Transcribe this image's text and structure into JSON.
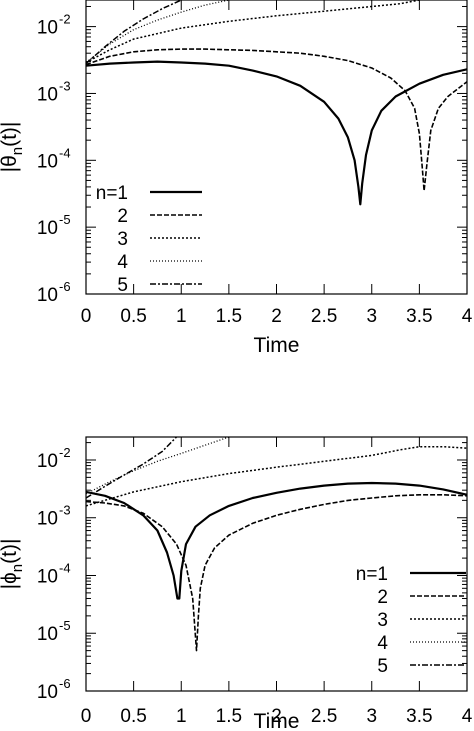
{
  "chart_data": [
    {
      "type": "line",
      "title": "",
      "xlabel": "Time",
      "ylabel": "|θn(t)|",
      "ylabel_parts": {
        "pre": "|θ",
        "sub": "n",
        "post": "(t)|"
      },
      "xlim": [
        0,
        4
      ],
      "ylim": [
        1e-06,
        0.025
      ],
      "yscale": "log",
      "grid": false,
      "legend_position": "lower-left",
      "x_ticks": [
        {
          "value": 0,
          "label": "0"
        },
        {
          "value": 0.5,
          "label": "0.5"
        },
        {
          "value": 1,
          "label": "1"
        },
        {
          "value": 1.5,
          "label": "1.5"
        },
        {
          "value": 2,
          "label": "2"
        },
        {
          "value": 2.5,
          "label": "2.5"
        },
        {
          "value": 3,
          "label": "3"
        },
        {
          "value": 3.5,
          "label": "3.5"
        },
        {
          "value": 4,
          "label": "4"
        }
      ],
      "y_ticks": [
        {
          "value": 1e-06,
          "label": "10",
          "exp": "-6"
        },
        {
          "value": 1e-05,
          "label": "10",
          "exp": "-5"
        },
        {
          "value": 0.0001,
          "label": "10",
          "exp": "-4"
        },
        {
          "value": 0.001,
          "label": "10",
          "exp": "-3"
        },
        {
          "value": 0.01,
          "label": "10",
          "exp": "-2"
        }
      ],
      "series": [
        {
          "name": "n=1",
          "style": "solid",
          "x": [
            0,
            0.25,
            0.5,
            0.75,
            1.0,
            1.25,
            1.5,
            1.75,
            2.0,
            2.25,
            2.5,
            2.65,
            2.75,
            2.82,
            2.86,
            2.88,
            2.9,
            2.94,
            3.0,
            3.1,
            3.25,
            3.5,
            3.75,
            4.0
          ],
          "y": [
            0.0026,
            0.0028,
            0.0029,
            0.003,
            0.0029,
            0.0028,
            0.0026,
            0.0022,
            0.0018,
            0.0013,
            0.00075,
            0.00042,
            0.00022,
            0.0001,
            4e-05,
            2.2e-05,
            4.5e-05,
            0.00012,
            0.00028,
            0.00055,
            0.0009,
            0.0014,
            0.0019,
            0.0023
          ]
        },
        {
          "name": "2",
          "style": "dashed",
          "x": [
            0,
            0.25,
            0.5,
            0.75,
            1.0,
            1.25,
            1.5,
            1.75,
            2.0,
            2.25,
            2.5,
            2.75,
            3.0,
            3.2,
            3.35,
            3.45,
            3.5,
            3.53,
            3.55,
            3.58,
            3.62,
            3.7,
            3.8,
            4.0
          ],
          "y": [
            0.0027,
            0.0036,
            0.0042,
            0.0045,
            0.0046,
            0.0046,
            0.0045,
            0.0044,
            0.0042,
            0.004,
            0.0036,
            0.0031,
            0.0024,
            0.0017,
            0.0011,
            0.0006,
            0.00025,
            8e-05,
            3.5e-05,
            9e-05,
            0.00028,
            0.0006,
            0.0009,
            0.0015
          ]
        },
        {
          "name": "3",
          "style": "dotted",
          "x": [
            0,
            0.25,
            0.5,
            1.0,
            1.5,
            2.0,
            2.5,
            3.0,
            3.3,
            3.5
          ],
          "y": [
            0.0029,
            0.0045,
            0.0065,
            0.0095,
            0.012,
            0.0145,
            0.017,
            0.02,
            0.022,
            0.025
          ]
        },
        {
          "name": "4",
          "style": "fine-dotted",
          "x": [
            0,
            0.25,
            0.5,
            0.75,
            1.0,
            1.25,
            1.5
          ],
          "y": [
            0.0029,
            0.0055,
            0.009,
            0.0125,
            0.0165,
            0.021,
            0.025
          ]
        },
        {
          "name": "5",
          "style": "dash-dot",
          "x": [
            0,
            0.2,
            0.4,
            0.6,
            0.8,
            1.0
          ],
          "y": [
            0.0028,
            0.005,
            0.0085,
            0.013,
            0.0185,
            0.025
          ]
        }
      ]
    },
    {
      "type": "line",
      "title": "",
      "xlabel": "Time",
      "ylabel": "|ϕn(t)|",
      "ylabel_parts": {
        "pre": "|ϕ",
        "sub": "n",
        "post": "(t)|"
      },
      "xlim": [
        0,
        4
      ],
      "ylim": [
        1e-06,
        0.025
      ],
      "yscale": "log",
      "grid": false,
      "legend_position": "lower-right",
      "x_ticks": [
        {
          "value": 0,
          "label": "0"
        },
        {
          "value": 0.5,
          "label": "0.5"
        },
        {
          "value": 1,
          "label": "1"
        },
        {
          "value": 1.5,
          "label": "1.5"
        },
        {
          "value": 2,
          "label": "2"
        },
        {
          "value": 2.5,
          "label": "2.5"
        },
        {
          "value": 3,
          "label": "3"
        },
        {
          "value": 3.5,
          "label": "3.5"
        },
        {
          "value": 4,
          "label": "4"
        }
      ],
      "y_ticks": [
        {
          "value": 1e-06,
          "label": "10",
          "exp": "-6"
        },
        {
          "value": 1e-05,
          "label": "10",
          "exp": "-5"
        },
        {
          "value": 0.0001,
          "label": "10",
          "exp": "-4"
        },
        {
          "value": 0.001,
          "label": "10",
          "exp": "-3"
        },
        {
          "value": 0.01,
          "label": "10",
          "exp": "-2"
        }
      ],
      "series": [
        {
          "name": "n=1",
          "style": "solid",
          "x": [
            0,
            0.2,
            0.4,
            0.6,
            0.75,
            0.85,
            0.92,
            0.96,
            0.98,
            1.0,
            1.05,
            1.15,
            1.3,
            1.5,
            1.75,
            2.0,
            2.25,
            2.5,
            2.75,
            3.0,
            3.25,
            3.5,
            3.75,
            4.0
          ],
          "y": [
            0.0028,
            0.0024,
            0.0018,
            0.0011,
            0.0006,
            0.00025,
            0.0001,
            4e-05,
            4e-05,
            0.00012,
            0.00035,
            0.0007,
            0.0011,
            0.0016,
            0.0022,
            0.0027,
            0.0032,
            0.0036,
            0.0039,
            0.004,
            0.0039,
            0.0036,
            0.0031,
            0.0025
          ]
        },
        {
          "name": "2",
          "style": "dashed",
          "x": [
            0,
            0.2,
            0.4,
            0.6,
            0.8,
            0.95,
            1.05,
            1.12,
            1.16,
            1.18,
            1.2,
            1.25,
            1.35,
            1.5,
            1.75,
            2.0,
            2.25,
            2.5,
            2.75,
            3.0,
            3.25,
            3.5,
            3.75,
            4.0
          ],
          "y": [
            0.0019,
            0.0018,
            0.0016,
            0.0012,
            0.0007,
            0.00035,
            0.00015,
            4e-05,
            5e-06,
            2e-05,
            6e-05,
            0.00015,
            0.0003,
            0.0005,
            0.0008,
            0.0011,
            0.0014,
            0.0017,
            0.002,
            0.0022,
            0.0024,
            0.0025,
            0.0025,
            0.0024
          ]
        },
        {
          "name": "3",
          "style": "dotted",
          "x": [
            0,
            0.5,
            1.0,
            1.5,
            2.0,
            2.5,
            3.0,
            3.3,
            3.5,
            3.75,
            4.0
          ],
          "y": [
            0.0016,
            0.0028,
            0.0042,
            0.0058,
            0.0075,
            0.0095,
            0.012,
            0.015,
            0.017,
            0.017,
            0.016
          ]
        },
        {
          "name": "4",
          "style": "fine-dotted",
          "x": [
            0,
            0.25,
            0.5,
            0.75,
            1.0,
            1.25,
            1.5
          ],
          "y": [
            0.0026,
            0.0042,
            0.0065,
            0.0095,
            0.013,
            0.018,
            0.025
          ]
        },
        {
          "name": "5",
          "style": "dash-dot",
          "x": [
            0,
            0.2,
            0.4,
            0.6,
            0.8,
            0.95
          ],
          "y": [
            0.0022,
            0.0035,
            0.0055,
            0.0085,
            0.014,
            0.025
          ]
        }
      ]
    }
  ]
}
